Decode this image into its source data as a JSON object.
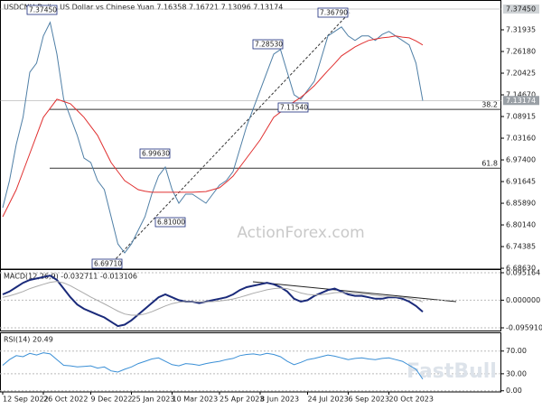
{
  "chart_data": [
    {
      "type": "line",
      "title": "USDCNH,Daily: US Dollar vs Chinese Yuan  7.16358 7.16721 7.13096 7.13174",
      "ylim": [
        6.684,
        7.3985
      ],
      "yticks": [
        7.31935,
        {
          "value": 7.2618,
          "label": "7.26180"
        },
        7.20425,
        {
          "value": 7.1467,
          "label": "7.14670"
        },
        7.08915,
        {
          "value": 7.0316,
          "label": "7.03160"
        },
        {
          "value": 6.974,
          "label": "6.97400"
        },
        6.91645,
        {
          "value": 6.8589,
          "label": "6.85890"
        },
        {
          "value": 6.8014,
          "label": "6.80140"
        },
        6.74385,
        {
          "value": 6.6863,
          "label": "6.68630"
        }
      ],
      "series": [
        {
          "color": "#4f7fa6",
          "values": [
            6.847,
            6.919,
            7.015,
            7.087,
            7.207,
            7.231,
            7.303,
            7.339,
            7.255,
            7.135,
            7.087,
            7.039,
            6.979,
            6.967,
            6.919,
            6.895,
            6.823,
            6.751,
            6.727,
            6.751,
            6.787,
            6.823,
            6.883,
            6.931,
            6.955,
            6.895,
            6.859,
            6.883,
            6.883,
            6.871,
            6.859,
            6.883,
            6.907,
            6.919,
            6.943,
            7.003,
            7.063,
            7.111,
            7.159,
            7.207,
            7.255,
            7.267,
            7.207,
            7.147,
            7.135,
            7.159,
            7.183,
            7.243,
            7.303,
            7.315,
            7.327,
            7.303,
            7.291,
            7.303,
            7.303,
            7.291,
            7.307,
            7.315,
            7.303,
            7.291,
            7.279,
            7.231,
            7.131
          ]
        },
        {
          "color": "#e03030",
          "values": [
            6.823,
            6.859,
            6.895,
            6.943,
            6.991,
            7.039,
            7.087,
            7.111,
            7.135,
            7.129,
            7.123,
            7.105,
            7.087,
            7.063,
            7.039,
            7.003,
            6.967,
            6.943,
            6.919,
            6.907,
            6.895,
            6.891,
            6.888,
            6.888,
            6.888,
            6.888,
            6.888,
            6.888,
            6.888,
            6.889,
            6.89,
            6.895,
            6.9,
            6.915,
            6.931,
            6.955,
            6.979,
            7.003,
            7.027,
            7.057,
            7.087,
            7.101,
            7.116,
            7.128,
            7.14,
            7.155,
            7.171,
            7.191,
            7.211,
            7.23,
            7.25,
            7.262,
            7.274,
            7.283,
            7.291,
            7.295,
            7.298,
            7.3,
            7.303,
            7.3,
            7.298,
            7.29,
            7.279
          ]
        }
      ],
      "annotations": [
        "7.37450",
        "7.36790",
        "7.28530",
        "7.11540",
        "6.99630",
        "6.81000",
        "6.69710"
      ],
      "price_labels": [
        {
          "value": 7.3745,
          "label": "7.37450"
        },
        7.13174
      ],
      "fib_levels": [
        {
          "ratio": 38.2,
          "price": 7.108
        },
        {
          "ratio": 61.8,
          "price": 6.952
        }
      ],
      "watermark": "ActionForex.com"
    },
    {
      "type": "line",
      "title": "MACD(12,26,9) -0.032711 -0.013106",
      "ylim": [
        -0.1084,
        0.1077
      ],
      "yticks": [
        0.095164,
        {
          "value": 0,
          "label": "0.000000"
        },
        {
          "value": -0.09591,
          "label": "-0.095910"
        }
      ],
      "series": [
        {
          "color": "#1a2a7a",
          "values": [
            0.02,
            0.03,
            0.045,
            0.06,
            0.07,
            0.075,
            0.08,
            0.085,
            0.07,
            0.04,
            0.01,
            -0.015,
            -0.03,
            -0.04,
            -0.05,
            -0.06,
            -0.075,
            -0.09,
            -0.085,
            -0.07,
            -0.05,
            -0.03,
            -0.01,
            0.01,
            0.02,
            0.01,
            0,
            -0.005,
            -0.005,
            -0.01,
            -0.005,
            0,
            0.005,
            0.01,
            0.02,
            0.035,
            0.045,
            0.05,
            0.055,
            0.06,
            0.055,
            0.045,
            0.03,
            0.005,
            -0.005,
            0,
            0.015,
            0.025,
            0.035,
            0.04,
            0.03,
            0.02,
            0.015,
            0.015,
            0.01,
            0.005,
            0.005,
            0.01,
            0.01,
            0.005,
            -0.005,
            -0.02,
            -0.04
          ]
        },
        {
          "color": "#aaaaaa",
          "values": [
            0.01,
            0.015,
            0.022,
            0.03,
            0.04,
            0.048,
            0.055,
            0.062,
            0.065,
            0.06,
            0.05,
            0.037,
            0.024,
            0.011,
            -0.001,
            -0.013,
            -0.025,
            -0.038,
            -0.048,
            -0.052,
            -0.052,
            -0.048,
            -0.04,
            -0.03,
            -0.02,
            -0.012,
            -0.007,
            -0.005,
            -0.005,
            -0.006,
            -0.006,
            -0.005,
            -0.003,
            0,
            0.004,
            0.01,
            0.017,
            0.024,
            0.03,
            0.036,
            0.04,
            0.042,
            0.04,
            0.033,
            0.025,
            0.02,
            0.018,
            0.019,
            0.022,
            0.026,
            0.027,
            0.026,
            0.024,
            0.022,
            0.02,
            0.017,
            0.014,
            0.013,
            0.012,
            0.01,
            0.007,
            0.002,
            -0.006
          ]
        }
      ]
    },
    {
      "type": "line",
      "title": "RSI(14) 20.49",
      "ylim": [
        -2,
        103
      ],
      "yticks": [
        {
          "value": 70,
          "label": "70.00"
        },
        {
          "value": 30,
          "label": "30.00"
        },
        {
          "value": 0,
          "label": "0.00"
        }
      ],
      "categories": [
        "12 Sep 2022",
        null,
        null,
        null,
        null,
        null,
        "26 Oct 2022",
        null,
        null,
        null,
        null,
        null,
        null,
        "9 Dec 2022",
        null,
        null,
        null,
        null,
        null,
        "25 Jan 2023",
        null,
        null,
        null,
        null,
        null,
        "10 Mar 2023",
        null,
        null,
        null,
        null,
        null,
        null,
        "25 Apr 2023",
        null,
        null,
        null,
        null,
        null,
        "8 Jun 2023",
        null,
        null,
        null,
        null,
        null,
        null,
        "24 Jul 2023",
        null,
        null,
        null,
        null,
        null,
        "6 Sep 2023",
        null,
        null,
        null,
        null,
        null,
        "20 Oct 2023",
        null,
        null,
        null,
        null,
        null
      ],
      "series": [
        {
          "color": "#3a8fd6",
          "values": [
            45,
            55,
            62,
            60,
            66,
            63,
            67,
            65,
            55,
            45,
            44,
            42,
            43,
            44,
            40,
            42,
            35,
            33,
            38,
            42,
            48,
            52,
            56,
            58,
            52,
            46,
            44,
            48,
            47,
            45,
            48,
            50,
            52,
            55,
            57,
            62,
            64,
            65,
            63,
            66,
            64,
            60,
            52,
            46,
            50,
            55,
            57,
            60,
            63,
            61,
            58,
            55,
            57,
            58,
            56,
            55,
            57,
            58,
            55,
            52,
            45,
            38,
            20.49
          ]
        }
      ],
      "watermark": "FastBull"
    }
  ]
}
